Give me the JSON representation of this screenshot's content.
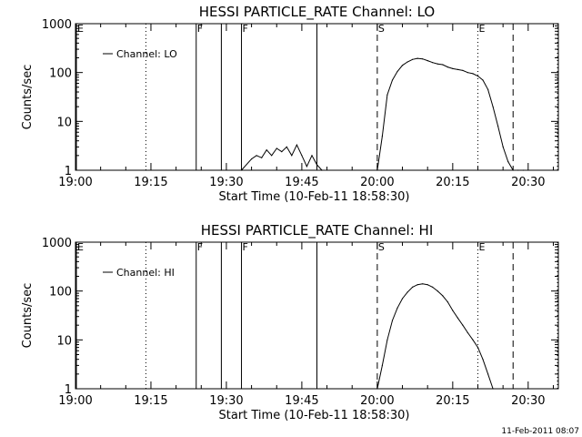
{
  "footer_timestamp": "11-Feb-2011 08:07",
  "chart_data": [
    {
      "type": "line",
      "title": "HESSI PARTICLE_RATE Channel: LO",
      "xlabel": "Start Time (10-Feb-11 18:58:30)",
      "ylabel": "Counts/sec",
      "y_scale": "log",
      "xlim": [
        "19:00",
        "20:36"
      ],
      "ylim": [
        1,
        1000
      ],
      "x_ticks": [
        "19:00",
        "19:15",
        "19:30",
        "19:45",
        "20:00",
        "20:15",
        "20:30"
      ],
      "y_ticks": [
        "1",
        "10",
        "100",
        "1000"
      ],
      "legend": "upper-left",
      "series": [
        {
          "name": "Channel: LO",
          "x": [
            "19:33",
            "19:35",
            "19:36",
            "19:37",
            "19:38",
            "19:39",
            "19:40",
            "19:41",
            "19:42",
            "19:43",
            "19:44",
            "19:45",
            "19:46",
            "19:47",
            "19:48",
            "19:49",
            "20:00",
            "20:01",
            "20:02",
            "20:03",
            "20:04",
            "20:05",
            "20:06",
            "20:07",
            "20:08",
            "20:09",
            "20:10",
            "20:11",
            "20:12",
            "20:13",
            "20:14",
            "20:15",
            "20:16",
            "20:17",
            "20:18",
            "20:19",
            "20:20",
            "20:21",
            "20:22",
            "20:23",
            "20:24",
            "20:25",
            "20:26",
            "20:27",
            "20:28",
            "20:29"
          ],
          "y": [
            1,
            1.7,
            2,
            1.8,
            2.6,
            2,
            2.8,
            2.4,
            3,
            2,
            3.3,
            2,
            1.2,
            2,
            1.3,
            1,
            1,
            5,
            35,
            70,
            105,
            140,
            165,
            185,
            195,
            190,
            175,
            160,
            150,
            145,
            130,
            120,
            115,
            110,
            100,
            95,
            85,
            70,
            45,
            20,
            8,
            3,
            1.5,
            1,
            1,
            1
          ]
        }
      ],
      "vertical_markers": [
        {
          "label": "E",
          "time": "18:59",
          "style": "solid"
        },
        {
          "label": "",
          "time": "19:14",
          "style": "dotted"
        },
        {
          "label": "F",
          "time": "19:24",
          "style": "solid"
        },
        {
          "label": "",
          "time": "19:29",
          "style": "solid"
        },
        {
          "label": "F",
          "time": "19:33",
          "style": "solid"
        },
        {
          "label": "",
          "time": "19:48",
          "style": "solid"
        },
        {
          "label": "S",
          "time": "20:00",
          "style": "dashed"
        },
        {
          "label": "E",
          "time": "20:20",
          "style": "dotted"
        },
        {
          "label": "",
          "time": "20:27",
          "style": "dashed"
        },
        {
          "label": "",
          "time": "20:36",
          "style": "dotted"
        }
      ]
    },
    {
      "type": "line",
      "title": "HESSI PARTICLE_RATE Channel: HI",
      "xlabel": "Start Time (10-Feb-11 18:58:30)",
      "ylabel": "Counts/sec",
      "y_scale": "log",
      "xlim": [
        "19:00",
        "20:36"
      ],
      "ylim": [
        1,
        1000
      ],
      "x_ticks": [
        "19:00",
        "19:15",
        "19:30",
        "19:45",
        "20:00",
        "20:15",
        "20:30"
      ],
      "y_ticks": [
        "1",
        "10",
        "100",
        "1000"
      ],
      "legend": "upper-left",
      "series": [
        {
          "name": "Channel: HI",
          "x": [
            "20:00",
            "20:01",
            "20:02",
            "20:03",
            "20:04",
            "20:05",
            "20:06",
            "20:07",
            "20:08",
            "20:09",
            "20:10",
            "20:11",
            "20:12",
            "20:13",
            "20:14",
            "20:15",
            "20:16",
            "20:17",
            "20:18",
            "20:19",
            "20:20",
            "20:21",
            "20:22",
            "20:23"
          ],
          "y": [
            1,
            3,
            10,
            25,
            45,
            70,
            95,
            120,
            135,
            140,
            135,
            120,
            100,
            80,
            60,
            40,
            28,
            20,
            14,
            10,
            7,
            4,
            2,
            1
          ]
        }
      ],
      "vertical_markers": [
        {
          "label": "E",
          "time": "18:59",
          "style": "solid"
        },
        {
          "label": "",
          "time": "19:14",
          "style": "dotted"
        },
        {
          "label": "F",
          "time": "19:24",
          "style": "solid"
        },
        {
          "label": "",
          "time": "19:29",
          "style": "solid"
        },
        {
          "label": "F",
          "time": "19:33",
          "style": "solid"
        },
        {
          "label": "",
          "time": "19:48",
          "style": "solid"
        },
        {
          "label": "S",
          "time": "20:00",
          "style": "dashed"
        },
        {
          "label": "E",
          "time": "20:20",
          "style": "dotted"
        },
        {
          "label": "",
          "time": "20:27",
          "style": "dashed"
        },
        {
          "label": "",
          "time": "20:36",
          "style": "dotted"
        }
      ]
    }
  ]
}
